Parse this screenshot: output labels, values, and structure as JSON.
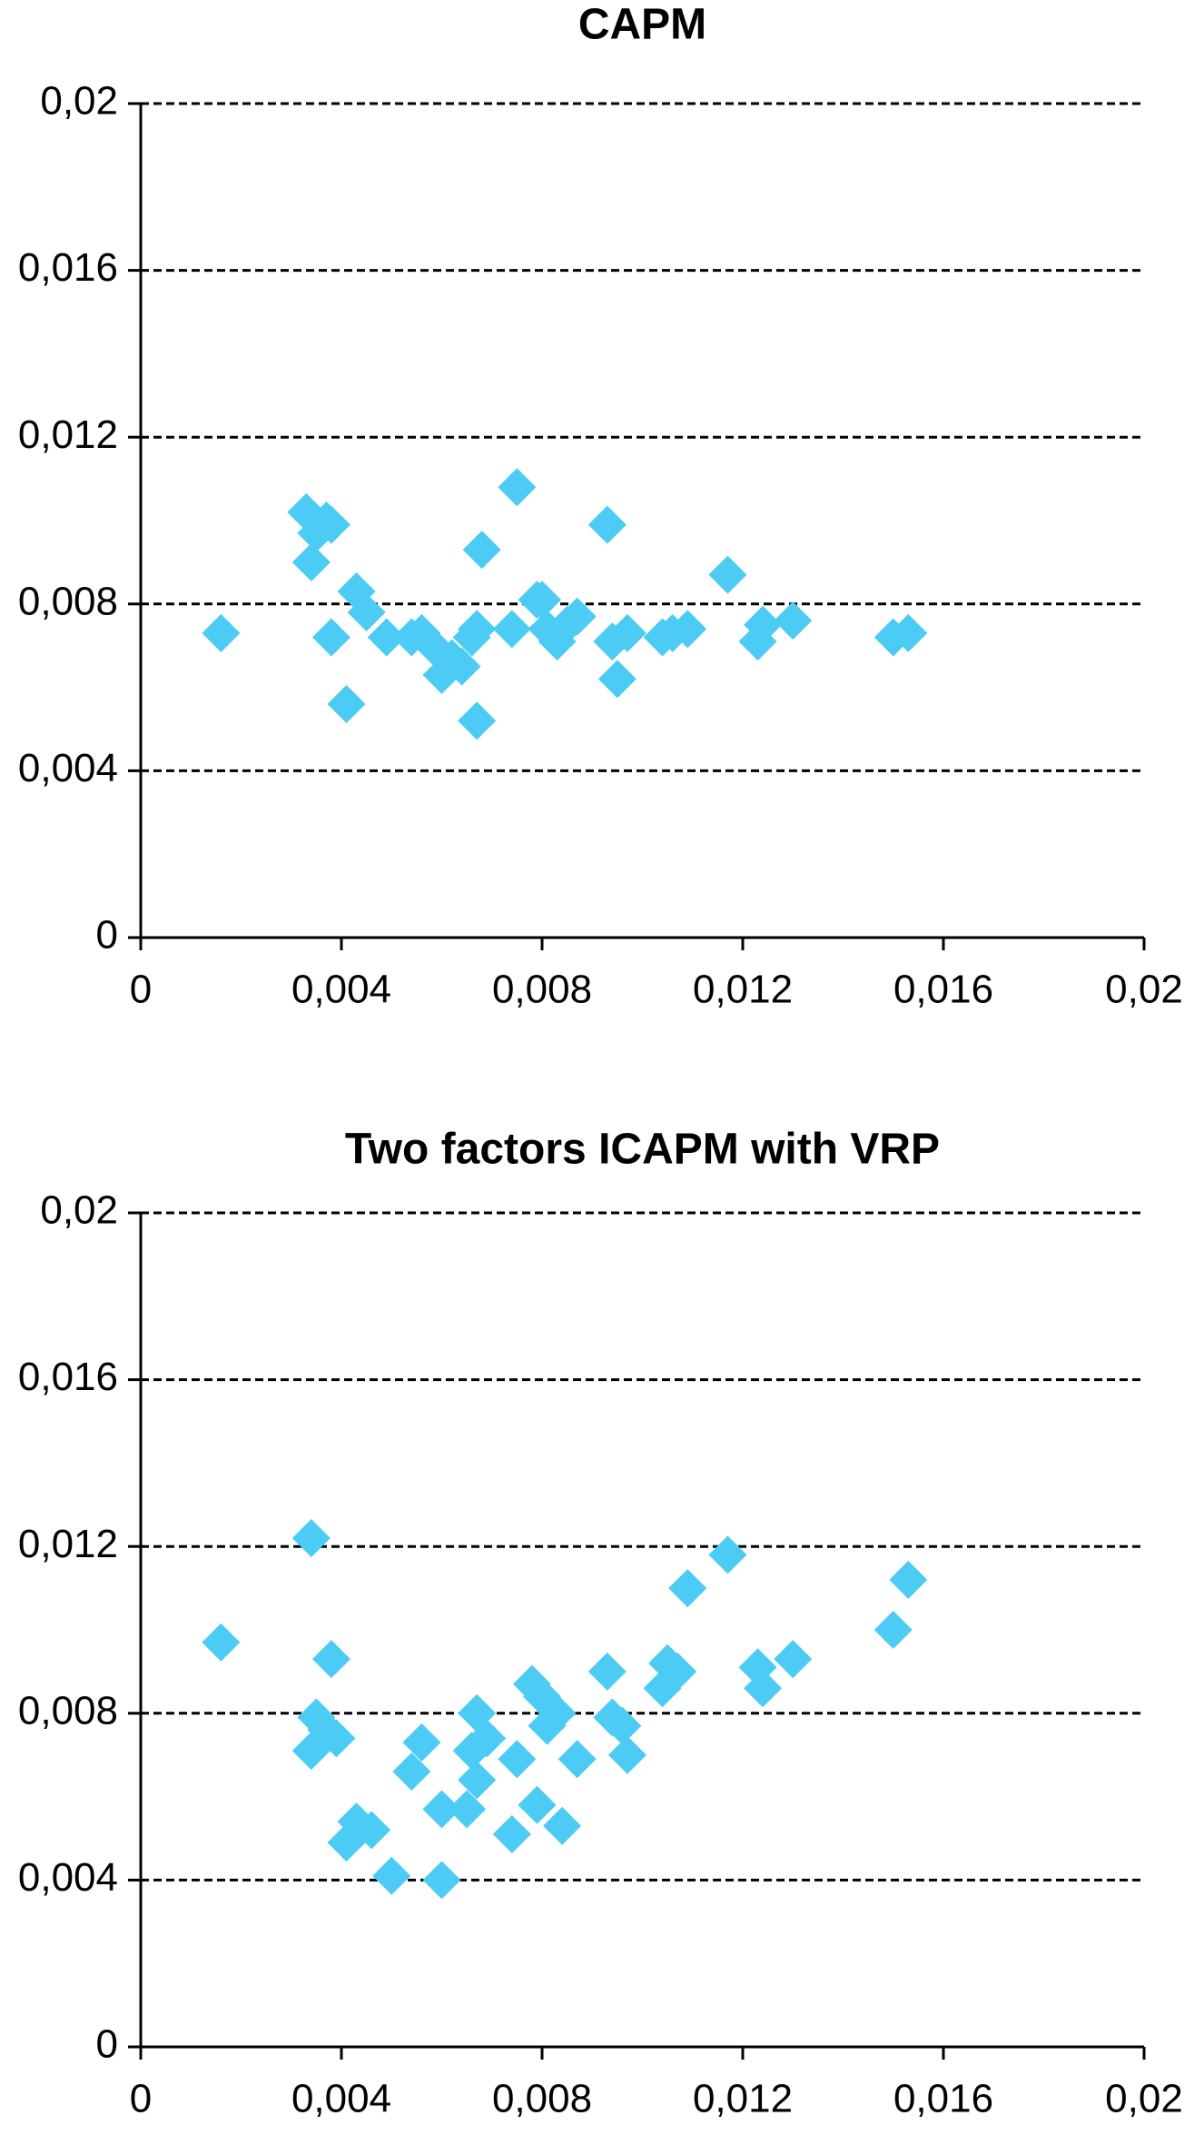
{
  "chart_data": [
    {
      "type": "scatter",
      "title": "CAPM",
      "color": "#4ccbf5",
      "grid": true,
      "xlim": [
        0,
        0.02
      ],
      "ylim": [
        0,
        0.02
      ],
      "xticks": [
        0,
        {
          "value": 0.004,
          "label": "0,004"
        },
        {
          "value": 0.008,
          "label": "0,008"
        },
        {
          "value": 0.012,
          "label": "0,012"
        },
        {
          "value": 0.016,
          "label": "0,016"
        },
        {
          "value": 0.02,
          "label": "0,02"
        }
      ],
      "yticks": [
        0,
        {
          "value": 0.004,
          "label": "0,004"
        },
        {
          "value": 0.008,
          "label": "0,008"
        },
        {
          "value": 0.012,
          "label": "0,012"
        },
        {
          "value": 0.016,
          "label": "0,016"
        },
        {
          "value": 0.02,
          "label": "0,02"
        }
      ],
      "x": [
        0.0016,
        0.0033,
        0.0034,
        0.0035,
        0.0037,
        0.0038,
        0.0038,
        0.0041,
        0.0043,
        0.0045,
        0.0049,
        0.0054,
        0.0056,
        0.0059,
        0.006,
        0.0062,
        0.0064,
        0.0066,
        0.0067,
        0.0067,
        0.0068,
        0.0074,
        0.0075,
        0.0079,
        0.008,
        0.0081,
        0.0083,
        0.0085,
        0.0087,
        0.0093,
        0.0094,
        0.0095,
        0.0097,
        0.0104,
        0.0106,
        0.0109,
        0.0117,
        0.0123,
        0.0124,
        0.013,
        0.015,
        0.0153
      ],
      "values": [
        0.0073,
        0.0102,
        0.009,
        0.0097,
        0.01,
        0.0099,
        0.0072,
        0.0056,
        0.0083,
        0.0078,
        0.0072,
        0.0072,
        0.0073,
        0.0069,
        0.0063,
        0.0067,
        0.0065,
        0.0072,
        0.0074,
        0.0052,
        0.0093,
        0.0074,
        0.0108,
        0.0081,
        0.0081,
        0.0074,
        0.0071,
        0.0075,
        0.0077,
        0.0099,
        0.0071,
        0.0062,
        0.0073,
        0.0072,
        0.0073,
        0.0074,
        0.0087,
        0.0071,
        0.0075,
        0.0076,
        0.0072,
        0.0073
      ]
    },
    {
      "type": "scatter",
      "title": "Two factors ICAPM with VRP",
      "color": "#4ccbf5",
      "grid": true,
      "xlim": [
        0,
        0.02
      ],
      "ylim": [
        0,
        0.02
      ],
      "xticks": [
        0,
        {
          "value": 0.004,
          "label": "0,004"
        },
        {
          "value": 0.008,
          "label": "0,008"
        },
        {
          "value": 0.012,
          "label": "0,012"
        },
        {
          "value": 0.016,
          "label": "0,016"
        },
        {
          "value": 0.02,
          "label": "0,02"
        }
      ],
      "yticks": [
        0,
        {
          "value": 0.004,
          "label": "0,004"
        },
        {
          "value": 0.008,
          "label": "0,008"
        },
        {
          "value": 0.012,
          "label": "0,012"
        },
        {
          "value": 0.016,
          "label": "0,016"
        },
        {
          "value": 0.02,
          "label": "0,02"
        }
      ],
      "x": [
        0.0016,
        0.0034,
        0.0034,
        0.0035,
        0.0037,
        0.0038,
        0.0039,
        0.0041,
        0.0043,
        0.0046,
        0.005,
        0.0054,
        0.0056,
        0.006,
        0.006,
        0.0065,
        0.0066,
        0.0067,
        0.0067,
        0.0069,
        0.0074,
        0.0075,
        0.0078,
        0.0079,
        0.008,
        0.0081,
        0.0083,
        0.0084,
        0.0087,
        0.0093,
        0.0094,
        0.0096,
        0.0097,
        0.0104,
        0.0105,
        0.0107,
        0.0109,
        0.0117,
        0.0123,
        0.0124,
        0.013,
        0.015,
        0.0153
      ],
      "values": [
        0.0097,
        0.0122,
        0.0071,
        0.0079,
        0.0076,
        0.0093,
        0.0074,
        0.0049,
        0.0054,
        0.0052,
        0.0041,
        0.0066,
        0.0073,
        0.0057,
        0.004,
        0.0057,
        0.0071,
        0.0064,
        0.008,
        0.0074,
        0.0051,
        0.0069,
        0.0087,
        0.0058,
        0.0084,
        0.0077,
        0.008,
        0.0053,
        0.0069,
        0.009,
        0.0079,
        0.0077,
        0.007,
        0.0086,
        0.0092,
        0.009,
        0.011,
        0.0118,
        0.0091,
        0.0086,
        0.0093,
        0.01,
        0.0112
      ]
    }
  ]
}
